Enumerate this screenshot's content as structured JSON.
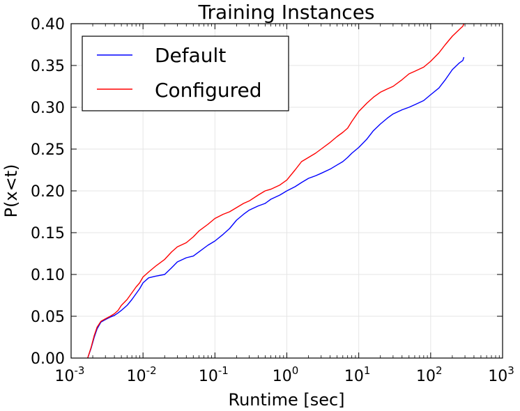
{
  "chart_data": {
    "type": "line",
    "title": "Training Instances",
    "xlabel": "Runtime [sec]",
    "ylabel": "P(x<t)",
    "x_scale": "log",
    "xlim": [
      0.001,
      1000
    ],
    "ylim": [
      0,
      0.4
    ],
    "grid": true,
    "legend_position": "top-left",
    "x_tick_bases": [
      "10",
      "10",
      "10",
      "10",
      "10",
      "10",
      "10"
    ],
    "x_tick_exponents": [
      "-3",
      "-2",
      "-1",
      "0",
      "1",
      "2",
      "3"
    ],
    "y_ticks": [
      "0.00",
      "0.05",
      "0.10",
      "0.15",
      "0.20",
      "0.25",
      "0.30",
      "0.35",
      "0.40"
    ],
    "series": [
      {
        "name": "Default",
        "color": "#0000ff",
        "x": [
          0.0017,
          0.0019,
          0.0021,
          0.0023,
          0.0026,
          0.003,
          0.0035,
          0.004,
          0.0045,
          0.005,
          0.006,
          0.007,
          0.008,
          0.009,
          0.01,
          0.012,
          0.015,
          0.02,
          0.025,
          0.03,
          0.04,
          0.05,
          0.06,
          0.08,
          0.1,
          0.13,
          0.16,
          0.2,
          0.25,
          0.3,
          0.4,
          0.5,
          0.6,
          0.8,
          1.0,
          1.3,
          1.6,
          2.0,
          2.5,
          3.0,
          4.0,
          5.0,
          6.0,
          7.0,
          8.0,
          10.0,
          13.0,
          16.0,
          20.0,
          25.0,
          30.0,
          40.0,
          50.0,
          60.0,
          80.0,
          100.0,
          130.0,
          160.0,
          200.0,
          250.0,
          280.0,
          290.0
        ],
        "y": [
          0.0,
          0.012,
          0.025,
          0.035,
          0.043,
          0.046,
          0.049,
          0.051,
          0.054,
          0.057,
          0.063,
          0.07,
          0.077,
          0.083,
          0.09,
          0.096,
          0.098,
          0.1,
          0.108,
          0.115,
          0.12,
          0.122,
          0.127,
          0.135,
          0.14,
          0.148,
          0.155,
          0.165,
          0.172,
          0.177,
          0.182,
          0.185,
          0.19,
          0.195,
          0.2,
          0.205,
          0.21,
          0.215,
          0.218,
          0.221,
          0.226,
          0.231,
          0.235,
          0.24,
          0.245,
          0.252,
          0.262,
          0.272,
          0.28,
          0.287,
          0.292,
          0.297,
          0.3,
          0.303,
          0.308,
          0.315,
          0.323,
          0.333,
          0.345,
          0.353,
          0.356,
          0.36
        ]
      },
      {
        "name": "Configured",
        "color": "#ff0000",
        "x": [
          0.0017,
          0.0019,
          0.0021,
          0.0023,
          0.0026,
          0.003,
          0.0035,
          0.004,
          0.0045,
          0.005,
          0.006,
          0.007,
          0.008,
          0.009,
          0.01,
          0.012,
          0.015,
          0.02,
          0.025,
          0.03,
          0.04,
          0.05,
          0.06,
          0.08,
          0.1,
          0.13,
          0.16,
          0.2,
          0.25,
          0.3,
          0.4,
          0.5,
          0.6,
          0.8,
          1.0,
          1.3,
          1.6,
          2.0,
          2.5,
          3.0,
          4.0,
          5.0,
          6.0,
          7.0,
          8.0,
          10.0,
          13.0,
          16.0,
          20.0,
          25.0,
          30.0,
          40.0,
          50.0,
          60.0,
          80.0,
          100.0,
          130.0,
          160.0,
          200.0,
          250.0,
          280.0,
          290.0
        ],
        "y": [
          0.0,
          0.013,
          0.027,
          0.037,
          0.044,
          0.047,
          0.05,
          0.053,
          0.057,
          0.063,
          0.07,
          0.078,
          0.085,
          0.09,
          0.097,
          0.103,
          0.11,
          0.118,
          0.127,
          0.133,
          0.138,
          0.145,
          0.152,
          0.16,
          0.167,
          0.172,
          0.175,
          0.18,
          0.185,
          0.188,
          0.195,
          0.2,
          0.202,
          0.207,
          0.213,
          0.225,
          0.235,
          0.24,
          0.245,
          0.25,
          0.258,
          0.265,
          0.27,
          0.275,
          0.283,
          0.295,
          0.305,
          0.312,
          0.318,
          0.322,
          0.325,
          0.333,
          0.34,
          0.343,
          0.348,
          0.355,
          0.365,
          0.375,
          0.385,
          0.393,
          0.397,
          0.4
        ]
      }
    ]
  }
}
